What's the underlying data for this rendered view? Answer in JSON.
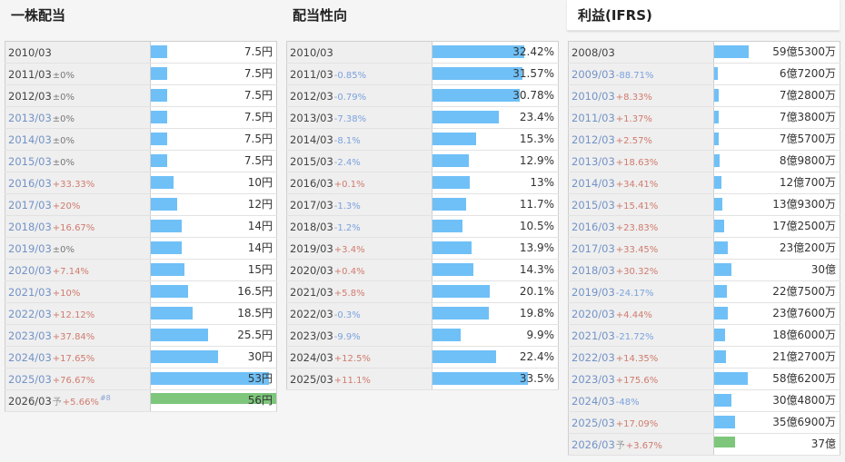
{
  "colors": {
    "bar": "#6fc0f7",
    "forecast_bar": "#7dc67b",
    "up": "#d07b6e",
    "down": "#7aa2de",
    "link": "#7393c7"
  },
  "panels": [
    {
      "id": "dividend",
      "title": "一株配当",
      "rows": [
        {
          "period": "2010/03",
          "link": false,
          "change": "",
          "dir": "",
          "forecast": "",
          "note": "",
          "value": "7.5円",
          "level": 0.059
        },
        {
          "period": "2011/03",
          "link": false,
          "change": "±0%",
          "dir": "zero",
          "forecast": "",
          "note": "",
          "value": "7.5円",
          "level": 0.059
        },
        {
          "period": "2012/03",
          "link": false,
          "change": "±0%",
          "dir": "zero",
          "forecast": "",
          "note": "",
          "value": "7.5円",
          "level": 0.059
        },
        {
          "period": "2013/03",
          "link": true,
          "change": "±0%",
          "dir": "zero",
          "forecast": "",
          "note": "",
          "value": "7.5円",
          "level": 0.059
        },
        {
          "period": "2014/03",
          "link": true,
          "change": "±0%",
          "dir": "zero",
          "forecast": "",
          "note": "",
          "value": "7.5円",
          "level": 0.059
        },
        {
          "period": "2015/03",
          "link": true,
          "change": "±0%",
          "dir": "zero",
          "forecast": "",
          "note": "",
          "value": "7.5円",
          "level": 0.059
        },
        {
          "period": "2016/03",
          "link": true,
          "change": "+33.33%",
          "dir": "up",
          "forecast": "",
          "note": "",
          "value": "10円",
          "level": 0.079
        },
        {
          "period": "2017/03",
          "link": true,
          "change": "+20%",
          "dir": "up",
          "forecast": "",
          "note": "",
          "value": "12円",
          "level": 0.094
        },
        {
          "period": "2018/03",
          "link": true,
          "change": "+16.67%",
          "dir": "up",
          "forecast": "",
          "note": "",
          "value": "14円",
          "level": 0.11
        },
        {
          "period": "2019/03",
          "link": true,
          "change": "±0%",
          "dir": "zero",
          "forecast": "",
          "note": "",
          "value": "14円",
          "level": 0.11
        },
        {
          "period": "2020/03",
          "link": true,
          "change": "+7.14%",
          "dir": "up",
          "forecast": "",
          "note": "",
          "value": "15円",
          "level": 0.118
        },
        {
          "period": "2021/03",
          "link": true,
          "change": "+10%",
          "dir": "up",
          "forecast": "",
          "note": "",
          "value": "16.5円",
          "level": 0.13
        },
        {
          "period": "2022/03",
          "link": true,
          "change": "+12.12%",
          "dir": "up",
          "forecast": "",
          "note": "",
          "value": "18.5円",
          "level": 0.146
        },
        {
          "period": "2023/03",
          "link": true,
          "change": "+37.84%",
          "dir": "up",
          "forecast": "",
          "note": "",
          "value": "25.5円",
          "level": 0.2
        },
        {
          "period": "2024/03",
          "link": true,
          "change": "+17.65%",
          "dir": "up",
          "forecast": "",
          "note": "",
          "value": "30円",
          "level": 0.236
        },
        {
          "period": "2025/03",
          "link": true,
          "change": "+76.67%",
          "dir": "up",
          "forecast": "",
          "note": "",
          "value": "53円",
          "level": 0.417
        },
        {
          "period": "2026/03",
          "link": false,
          "change": "+5.66%",
          "dir": "up",
          "forecast": "予",
          "note": "#8",
          "value": "56円",
          "level": 0.441
        }
      ]
    },
    {
      "id": "payout",
      "title": "配当性向",
      "rows": [
        {
          "period": "2010/03",
          "link": false,
          "change": "",
          "dir": "",
          "forecast": "",
          "note": "",
          "value": "32.42%",
          "level": 0.324
        },
        {
          "period": "2011/03",
          "link": false,
          "change": "-0.85%",
          "dir": "down",
          "forecast": "",
          "note": "",
          "value": "31.57%",
          "level": 0.316
        },
        {
          "period": "2012/03",
          "link": false,
          "change": "-0.79%",
          "dir": "down",
          "forecast": "",
          "note": "",
          "value": "30.78%",
          "level": 0.308
        },
        {
          "period": "2013/03",
          "link": false,
          "change": "-7.38%",
          "dir": "down",
          "forecast": "",
          "note": "",
          "value": "23.4%",
          "level": 0.234
        },
        {
          "period": "2014/03",
          "link": false,
          "change": "-8.1%",
          "dir": "down",
          "forecast": "",
          "note": "",
          "value": "15.3%",
          "level": 0.153
        },
        {
          "period": "2015/03",
          "link": false,
          "change": "-2.4%",
          "dir": "down",
          "forecast": "",
          "note": "",
          "value": "12.9%",
          "level": 0.129
        },
        {
          "period": "2016/03",
          "link": false,
          "change": "+0.1%",
          "dir": "up",
          "forecast": "",
          "note": "",
          "value": "13%",
          "level": 0.13
        },
        {
          "period": "2017/03",
          "link": false,
          "change": "-1.3%",
          "dir": "down",
          "forecast": "",
          "note": "",
          "value": "11.7%",
          "level": 0.117
        },
        {
          "period": "2018/03",
          "link": false,
          "change": "-1.2%",
          "dir": "down",
          "forecast": "",
          "note": "",
          "value": "10.5%",
          "level": 0.105
        },
        {
          "period": "2019/03",
          "link": false,
          "change": "+3.4%",
          "dir": "up",
          "forecast": "",
          "note": "",
          "value": "13.9%",
          "level": 0.139
        },
        {
          "period": "2020/03",
          "link": false,
          "change": "+0.4%",
          "dir": "up",
          "forecast": "",
          "note": "",
          "value": "14.3%",
          "level": 0.143
        },
        {
          "period": "2021/03",
          "link": false,
          "change": "+5.8%",
          "dir": "up",
          "forecast": "",
          "note": "",
          "value": "20.1%",
          "level": 0.201
        },
        {
          "period": "2022/03",
          "link": false,
          "change": "-0.3%",
          "dir": "down",
          "forecast": "",
          "note": "",
          "value": "19.8%",
          "level": 0.198
        },
        {
          "period": "2023/03",
          "link": false,
          "change": "-9.9%",
          "dir": "down",
          "forecast": "",
          "note": "",
          "value": "9.9%",
          "level": 0.099
        },
        {
          "period": "2024/03",
          "link": false,
          "change": "+12.5%",
          "dir": "up",
          "forecast": "",
          "note": "",
          "value": "22.4%",
          "level": 0.224
        },
        {
          "period": "2025/03",
          "link": false,
          "change": "+11.1%",
          "dir": "up",
          "forecast": "",
          "note": "",
          "value": "33.5%",
          "level": 0.335
        }
      ]
    },
    {
      "id": "profit",
      "title": "利益(IFRS)",
      "rows": [
        {
          "period": "2008/03",
          "link": false,
          "change": "",
          "dir": "",
          "forecast": "",
          "note": "",
          "value": "59億5300万",
          "level": 0.121
        },
        {
          "period": "2009/03",
          "link": true,
          "change": "-88.71%",
          "dir": "down",
          "forecast": "",
          "note": "",
          "value": "6億7200万",
          "level": 0.014
        },
        {
          "period": "2010/03",
          "link": true,
          "change": "+8.33%",
          "dir": "up",
          "forecast": "",
          "note": "",
          "value": "7億2800万",
          "level": 0.015
        },
        {
          "period": "2011/03",
          "link": true,
          "change": "+1.37%",
          "dir": "up",
          "forecast": "",
          "note": "",
          "value": "7億3800万",
          "level": 0.015
        },
        {
          "period": "2012/03",
          "link": true,
          "change": "+2.57%",
          "dir": "up",
          "forecast": "",
          "note": "",
          "value": "7億5700万",
          "level": 0.015
        },
        {
          "period": "2013/03",
          "link": true,
          "change": "+18.63%",
          "dir": "up",
          "forecast": "",
          "note": "",
          "value": "8億9800万",
          "level": 0.018
        },
        {
          "period": "2014/03",
          "link": true,
          "change": "+34.41%",
          "dir": "up",
          "forecast": "",
          "note": "",
          "value": "12億700万",
          "level": 0.025
        },
        {
          "period": "2015/03",
          "link": true,
          "change": "+15.41%",
          "dir": "up",
          "forecast": "",
          "note": "",
          "value": "13億9300万",
          "level": 0.028
        },
        {
          "period": "2016/03",
          "link": true,
          "change": "+23.83%",
          "dir": "up",
          "forecast": "",
          "note": "",
          "value": "17億2500万",
          "level": 0.035
        },
        {
          "period": "2017/03",
          "link": true,
          "change": "+33.45%",
          "dir": "up",
          "forecast": "",
          "note": "",
          "value": "23億200万",
          "level": 0.047
        },
        {
          "period": "2018/03",
          "link": true,
          "change": "+30.32%",
          "dir": "up",
          "forecast": "",
          "note": "",
          "value": "30億",
          "level": 0.061
        },
        {
          "period": "2019/03",
          "link": true,
          "change": "-24.17%",
          "dir": "down",
          "forecast": "",
          "note": "",
          "value": "22億7500万",
          "level": 0.046
        },
        {
          "period": "2020/03",
          "link": true,
          "change": "+4.44%",
          "dir": "up",
          "forecast": "",
          "note": "",
          "value": "23億7600万",
          "level": 0.048
        },
        {
          "period": "2021/03",
          "link": true,
          "change": "-21.72%",
          "dir": "down",
          "forecast": "",
          "note": "",
          "value": "18億6000万",
          "level": 0.038
        },
        {
          "period": "2022/03",
          "link": true,
          "change": "+14.35%",
          "dir": "up",
          "forecast": "",
          "note": "",
          "value": "21億2700万",
          "level": 0.043
        },
        {
          "period": "2023/03",
          "link": true,
          "change": "+175.6%",
          "dir": "up",
          "forecast": "",
          "note": "",
          "value": "58億6200万",
          "level": 0.119
        },
        {
          "period": "2024/03",
          "link": true,
          "change": "-48%",
          "dir": "down",
          "forecast": "",
          "note": "",
          "value": "30億4800万",
          "level": 0.062
        },
        {
          "period": "2025/03",
          "link": true,
          "change": "+17.09%",
          "dir": "up",
          "forecast": "",
          "note": "",
          "value": "35億6900万",
          "level": 0.073
        },
        {
          "period": "2026/03",
          "link": true,
          "change": "+3.67%",
          "dir": "up",
          "forecast": "予",
          "note": "",
          "value": "37億",
          "level": 0.075
        }
      ]
    }
  ]
}
